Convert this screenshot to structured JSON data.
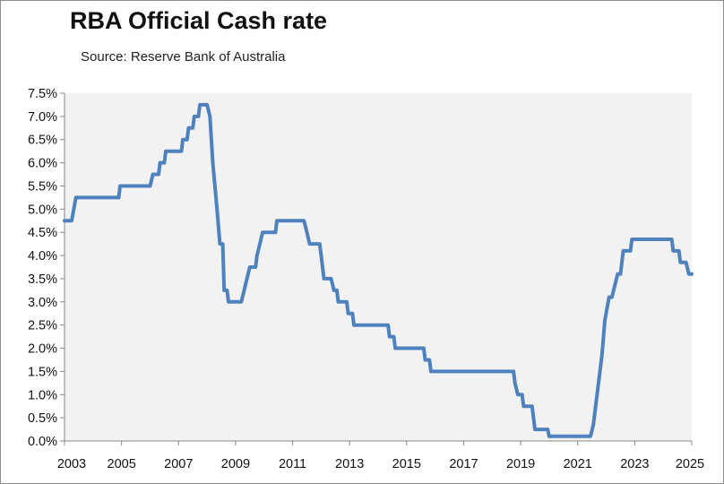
{
  "chart_data": {
    "type": "line",
    "title": "RBA Official Cash rate",
    "subtitle": "Source: Reserve Bank of Australia",
    "xlabel": "",
    "ylabel": "",
    "xlim": [
      2003,
      2025
    ],
    "ylim": [
      0,
      7.5
    ],
    "x_ticks": [
      "2003",
      "2005",
      "2007",
      "2009",
      "2011",
      "2013",
      "2015",
      "2017",
      "2019",
      "2021",
      "2023",
      "2025"
    ],
    "y_ticks": [
      "0.0%",
      "0.5%",
      "1.0%",
      "1.5%",
      "2.0%",
      "2.5%",
      "3.0%",
      "3.5%",
      "4.0%",
      "4.5%",
      "5.0%",
      "5.5%",
      "6.0%",
      "6.5%",
      "7.0%",
      "7.5%"
    ],
    "grid": false,
    "series": [
      {
        "color": "#4f81bd",
        "points": [
          [
            2003.0,
            4.75
          ],
          [
            2003.25,
            4.75
          ],
          [
            2003.4,
            5.25
          ],
          [
            2004.6,
            5.25
          ],
          [
            2004.9,
            5.25
          ],
          [
            2004.95,
            5.5
          ],
          [
            2005.9,
            5.5
          ],
          [
            2006.0,
            5.5
          ],
          [
            2006.1,
            5.75
          ],
          [
            2006.3,
            5.75
          ],
          [
            2006.35,
            6.0
          ],
          [
            2006.5,
            6.0
          ],
          [
            2006.55,
            6.25
          ],
          [
            2007.1,
            6.25
          ],
          [
            2007.15,
            6.5
          ],
          [
            2007.3,
            6.5
          ],
          [
            2007.35,
            6.75
          ],
          [
            2007.5,
            6.75
          ],
          [
            2007.55,
            7.0
          ],
          [
            2007.7,
            7.0
          ],
          [
            2007.75,
            7.25
          ],
          [
            2008.0,
            7.25
          ],
          [
            2008.1,
            7.0
          ],
          [
            2008.2,
            6.0
          ],
          [
            2008.35,
            5.0
          ],
          [
            2008.45,
            4.25
          ],
          [
            2008.55,
            4.25
          ],
          [
            2008.6,
            3.25
          ],
          [
            2008.7,
            3.25
          ],
          [
            2008.75,
            3.0
          ],
          [
            2009.2,
            3.0
          ],
          [
            2009.3,
            3.25
          ],
          [
            2009.4,
            3.5
          ],
          [
            2009.5,
            3.75
          ],
          [
            2009.7,
            3.75
          ],
          [
            2009.75,
            4.0
          ],
          [
            2009.85,
            4.25
          ],
          [
            2009.95,
            4.5
          ],
          [
            2010.4,
            4.5
          ],
          [
            2010.45,
            4.75
          ],
          [
            2011.4,
            4.75
          ],
          [
            2011.5,
            4.5
          ],
          [
            2011.6,
            4.25
          ],
          [
            2011.95,
            4.25
          ],
          [
            2012.05,
            3.75
          ],
          [
            2012.1,
            3.5
          ],
          [
            2012.35,
            3.5
          ],
          [
            2012.45,
            3.25
          ],
          [
            2012.55,
            3.25
          ],
          [
            2012.6,
            3.0
          ],
          [
            2012.9,
            3.0
          ],
          [
            2012.95,
            2.75
          ],
          [
            2013.1,
            2.75
          ],
          [
            2013.15,
            2.5
          ],
          [
            2014.35,
            2.5
          ],
          [
            2014.4,
            2.25
          ],
          [
            2014.55,
            2.25
          ],
          [
            2014.6,
            2.0
          ],
          [
            2015.6,
            2.0
          ],
          [
            2015.65,
            1.75
          ],
          [
            2015.8,
            1.75
          ],
          [
            2015.85,
            1.5
          ],
          [
            2018.75,
            1.5
          ],
          [
            2018.8,
            1.25
          ],
          [
            2018.9,
            1.0
          ],
          [
            2019.05,
            1.0
          ],
          [
            2019.1,
            0.75
          ],
          [
            2019.4,
            0.75
          ],
          [
            2019.45,
            0.5
          ],
          [
            2019.5,
            0.25
          ],
          [
            2019.95,
            0.25
          ],
          [
            2020.0,
            0.1
          ],
          [
            2021.45,
            0.1
          ],
          [
            2021.55,
            0.35
          ],
          [
            2021.65,
            0.85
          ],
          [
            2021.75,
            1.35
          ],
          [
            2021.85,
            1.85
          ],
          [
            2021.95,
            2.6
          ],
          [
            2022.1,
            3.1
          ],
          [
            2022.2,
            3.1
          ],
          [
            2022.3,
            3.35
          ],
          [
            2022.4,
            3.6
          ],
          [
            2022.5,
            3.6
          ],
          [
            2022.55,
            3.85
          ],
          [
            2022.6,
            4.1
          ],
          [
            2022.85,
            4.1
          ],
          [
            2022.9,
            4.35
          ],
          [
            2024.3,
            4.35
          ],
          [
            2024.35,
            4.1
          ],
          [
            2024.55,
            4.1
          ],
          [
            2024.6,
            3.85
          ],
          [
            2024.8,
            3.85
          ],
          [
            2024.9,
            3.6
          ],
          [
            2025.0,
            3.6
          ]
        ]
      }
    ]
  }
}
